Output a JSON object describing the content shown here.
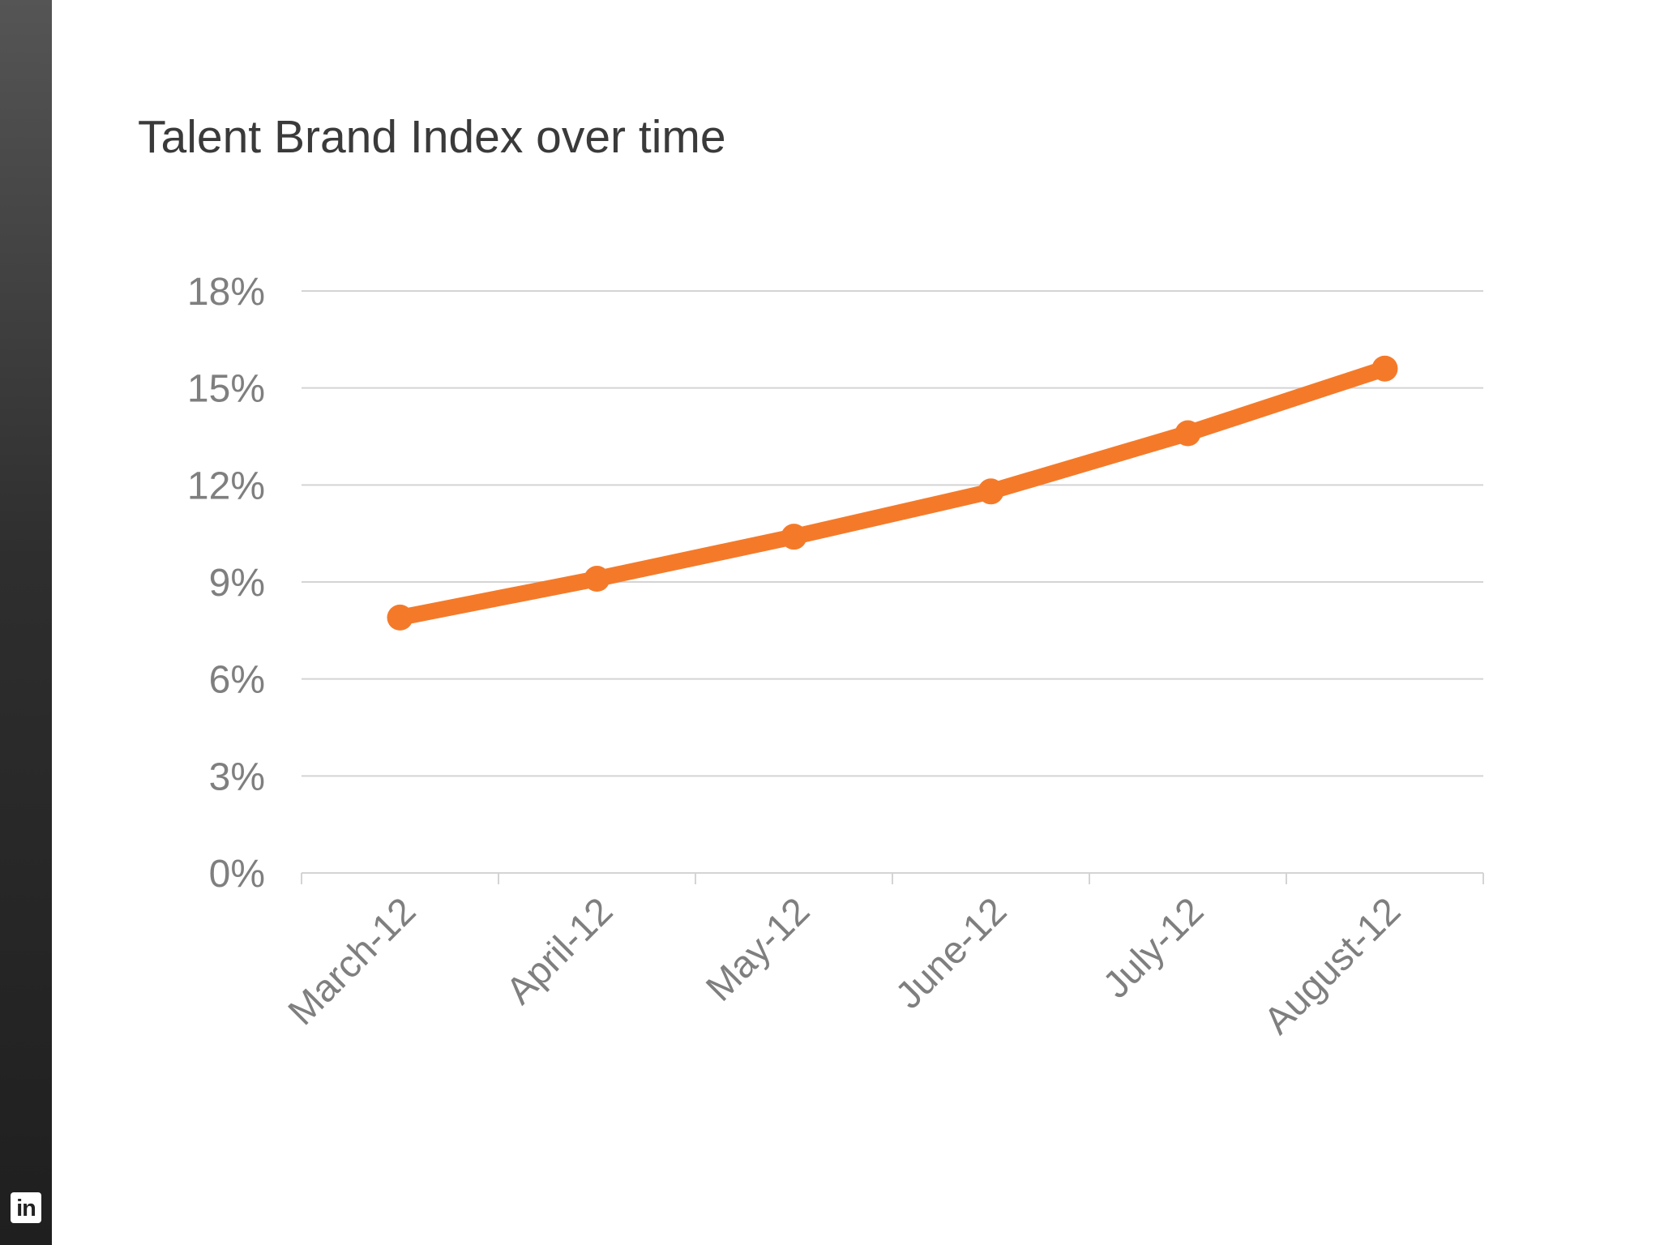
{
  "chart_data": {
    "type": "line",
    "title": "Talent Brand Index over time",
    "xlabel": "",
    "ylabel": "",
    "categories": [
      "March-12",
      "April-12",
      "May-12",
      "June-12",
      "July-12",
      "August-12"
    ],
    "series": [
      {
        "values": [
          7.9,
          9.1,
          10.4,
          11.8,
          13.6,
          15.6
        ]
      }
    ],
    "ylim": [
      0,
      18
    ],
    "yticks": [
      "0%",
      "3%",
      "6%",
      "9%",
      "12%",
      "15%",
      "18%"
    ],
    "grid": true,
    "legend": "none",
    "colors": {
      "line": "#f47a2a",
      "grid": "#d4d4d4",
      "tick_text": "#7f7f7f",
      "title_text": "#3a3a3a",
      "sidebar": "#2e2e2e"
    }
  },
  "branding": {
    "logo_text": "in",
    "logo_icon": "linkedin-icon"
  }
}
